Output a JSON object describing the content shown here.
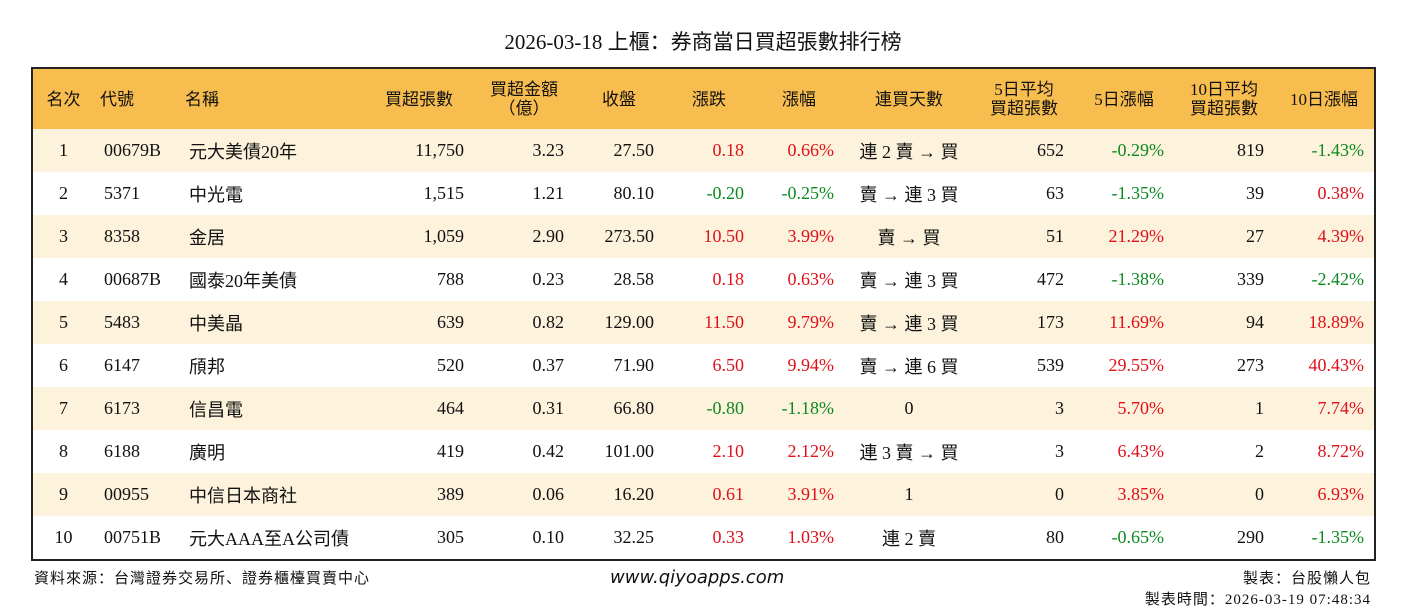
{
  "header": {
    "title": "2026-03-18 上櫃：券商當日買超張數排行榜"
  },
  "table": {
    "columns": [
      "名次",
      "代號",
      "名稱",
      "買超張數",
      "買超金額\n（億）",
      "收盤",
      "漲跌",
      "漲幅",
      "連買天數",
      "5日平均\n買超張數",
      "5日漲幅",
      "10日平均\n買超張數",
      "10日漲幅"
    ],
    "rows": [
      [
        "1",
        "00679B",
        "元大美債20年",
        "11,750",
        "3.23",
        "27.50",
        "0.18",
        "0.66%",
        "連 2 賣 → 買",
        "652",
        "-0.29%",
        "819",
        "-1.43%"
      ],
      [
        "2",
        "5371",
        "中光電",
        "1,515",
        "1.21",
        "80.10",
        "-0.20",
        "-0.25%",
        "賣 → 連 3 買",
        "63",
        "-1.35%",
        "39",
        "0.38%"
      ],
      [
        "3",
        "8358",
        "金居",
        "1,059",
        "2.90",
        "273.50",
        "10.50",
        "3.99%",
        "賣 → 買",
        "51",
        "21.29%",
        "27",
        "4.39%"
      ],
      [
        "4",
        "00687B",
        "國泰20年美債",
        "788",
        "0.23",
        "28.58",
        "0.18",
        "0.63%",
        "賣 → 連 3 買",
        "472",
        "-1.38%",
        "339",
        "-2.42%"
      ],
      [
        "5",
        "5483",
        "中美晶",
        "639",
        "0.82",
        "129.00",
        "11.50",
        "9.79%",
        "賣 → 連 3 買",
        "173",
        "11.69%",
        "94",
        "18.89%"
      ],
      [
        "6",
        "6147",
        "頎邦",
        "520",
        "0.37",
        "71.90",
        "6.50",
        "9.94%",
        "賣 → 連 6 買",
        "539",
        "29.55%",
        "273",
        "40.43%"
      ],
      [
        "7",
        "6173",
        "信昌電",
        "464",
        "0.31",
        "66.80",
        "-0.80",
        "-1.18%",
        "0",
        "3",
        "5.70%",
        "1",
        "7.74%"
      ],
      [
        "8",
        "6188",
        "廣明",
        "419",
        "0.42",
        "101.00",
        "2.10",
        "2.12%",
        "連 3 賣 → 買",
        "3",
        "6.43%",
        "2",
        "8.72%"
      ],
      [
        "9",
        "00955",
        "中信日本商社",
        "389",
        "0.06",
        "16.20",
        "0.61",
        "3.91%",
        "1",
        "0",
        "3.85%",
        "0",
        "6.93%"
      ],
      [
        "10",
        "00751B",
        "元大AAA至A公司債",
        "305",
        "0.10",
        "32.25",
        "0.33",
        "1.03%",
        "連 2 賣",
        "80",
        "-0.65%",
        "290",
        "-1.35%"
      ]
    ]
  },
  "footer": {
    "source": "資料來源：台灣證券交易所、證券櫃檯買賣中心",
    "website": "www.qiyoapps.com",
    "maker": "製表：台股懶人包",
    "time": "製表時間：2026-03-19 07:48:34"
  }
}
